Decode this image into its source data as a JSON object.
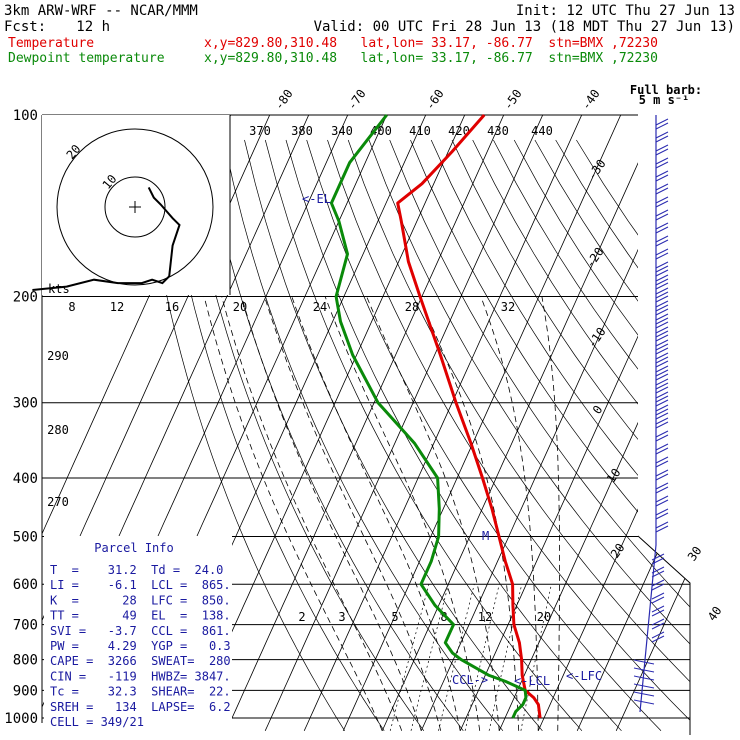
{
  "header": {
    "model": "3km ARW-WRF -- NCAR/MMM",
    "init": "Init: 12 UTC Thu 27 Jun 13",
    "fcst_label": "Fcst:",
    "fcst_value": "12 h",
    "valid": "Valid: 00 UTC Fri 28 Jun 13 (18 MDT Thu 27 Jun 13)",
    "temp_label": "Temperature",
    "temp_loc": "x,y=829.80,310.48   lat,lon= 33.17, -86.77  stn=BMX ,72230",
    "dew_label": "Dewpoint temperature",
    "dew_loc": "x,y=829.80,310.48   lat,lon= 33.17, -86.77  stn=BMX ,72230"
  },
  "colors": {
    "temperature": "#e00000",
    "dewpoint": "#0a8a0a",
    "grid": "#000000",
    "parcel_info": "#1a1aa0",
    "wind_barbs": "#2a2ab0"
  },
  "barb_legend": {
    "line1": "Full barb:",
    "line2": "5 m s⁻¹"
  },
  "hodograph": {
    "unit": "kts",
    "rings": [
      "20",
      "10"
    ]
  },
  "annotations": {
    "el": "<-EL",
    "lcl": "<-LCL",
    "lfc": "<-LFC",
    "ccl": "CCL->",
    "m": "M"
  },
  "parcel_info": {
    "title": "Parcel Info",
    "rows": [
      "T  =    31.2  Td =  24.0",
      "LI =    -6.1  LCL =  865.",
      "K  =      28  LFC =  850.",
      "TT =      49  EL  =  138.",
      "SVI =   -3.7  CCL =  861.",
      "PW =    4.29  YGP =   0.3",
      "CAPE =  3266  SWEAT=  280",
      "CIN =   -119  HWBZ= 3847.",
      "Tc =    32.3  SHEAR=  22.",
      "SREH =   134  LAPSE=  6.2",
      "CELL = 349/21"
    ]
  },
  "chart_data": {
    "type": "line",
    "diagram": "skew-T log-p",
    "y_axis": {
      "label": "pressure (hPa)",
      "scale": "log",
      "ticks": [
        100,
        200,
        300,
        400,
        500,
        600,
        700,
        800,
        900,
        1000
      ]
    },
    "isotherm_labels_top": [
      "-80",
      "-70",
      "-60",
      "-50",
      "-40"
    ],
    "isotherm_labels_right": [
      "-30",
      "-20",
      "-10",
      "0",
      "10",
      "20",
      "30",
      "40"
    ],
    "theta_labels": {
      "top": [
        "370",
        "380",
        "340",
        "400",
        "410",
        "420",
        "430",
        "440"
      ],
      "left": [
        "290",
        "280",
        "270"
      ]
    },
    "mixing_ratio_labels_upper": [
      "8",
      "12",
      "16",
      "20",
      "24",
      "28",
      "32"
    ],
    "mixing_ratio_labels_lower": [
      "2",
      "3",
      "5",
      "8",
      "12",
      "20"
    ],
    "series": [
      {
        "name": "Temperature",
        "unit": "degC",
        "points": [
          [
            1000,
            29.0
          ],
          [
            950,
            27.0
          ],
          [
            925,
            25.0
          ],
          [
            900,
            22.0
          ],
          [
            850,
            19.5
          ],
          [
            800,
            17.5
          ],
          [
            750,
            15.0
          ],
          [
            700,
            11.5
          ],
          [
            650,
            9.0
          ],
          [
            600,
            6.5
          ],
          [
            550,
            2.0
          ],
          [
            500,
            -2.5
          ],
          [
            450,
            -7.5
          ],
          [
            400,
            -13.5
          ],
          [
            350,
            -20.5
          ],
          [
            300,
            -29.0
          ],
          [
            250,
            -38.5
          ],
          [
            200,
            -50.5
          ],
          [
            175,
            -57.5
          ],
          [
            150,
            -64.0
          ],
          [
            140,
            -67.0
          ],
          [
            130,
            -63.0
          ],
          [
            115,
            -59.0
          ],
          [
            100,
            -55.0
          ]
        ]
      },
      {
        "name": "Dewpoint temperature",
        "unit": "degC",
        "points": [
          [
            1000,
            22.0
          ],
          [
            975,
            22.0
          ],
          [
            950,
            23.0
          ],
          [
            925,
            23.0
          ],
          [
            900,
            22.0
          ],
          [
            870,
            16.0
          ],
          [
            850,
            11.0
          ],
          [
            800,
            2.0
          ],
          [
            780,
            -1.0
          ],
          [
            750,
            -4.0
          ],
          [
            700,
            -4.0
          ],
          [
            650,
            -11.0
          ],
          [
            600,
            -17.0
          ],
          [
            550,
            -17.0
          ],
          [
            500,
            -18.0
          ],
          [
            450,
            -21.0
          ],
          [
            400,
            -25.0
          ],
          [
            350,
            -35.0
          ],
          [
            300,
            -49.0
          ],
          [
            250,
            -61.0
          ],
          [
            220,
            -68.0
          ],
          [
            200,
            -72.0
          ],
          [
            170,
            -74.0
          ],
          [
            150,
            -80.0
          ],
          [
            140,
            -84.0
          ],
          [
            120,
            -84.0
          ],
          [
            100,
            -80.0
          ]
        ]
      }
    ],
    "annotations": {
      "EL_hPa": 138,
      "LCL_hPa": 865,
      "LFC_hPa": 850,
      "CCL_hPa": 861
    },
    "hodograph_trace": [
      [
        -30.0,
        -12.5
      ],
      [
        -20.0,
        -12.0
      ],
      [
        -12.0,
        -11.0
      ],
      [
        -5.0,
        -11.5
      ],
      [
        2.0,
        -11.5
      ],
      [
        5.0,
        -11.0
      ],
      [
        8.0,
        -11.5
      ],
      [
        10.0,
        -10.5
      ],
      [
        11.0,
        -6.0
      ],
      [
        13.0,
        -3.0
      ],
      [
        11.0,
        -2.0
      ],
      [
        7.5,
        0.0
      ],
      [
        5.5,
        1.0
      ],
      [
        4.0,
        2.5
      ]
    ]
  }
}
